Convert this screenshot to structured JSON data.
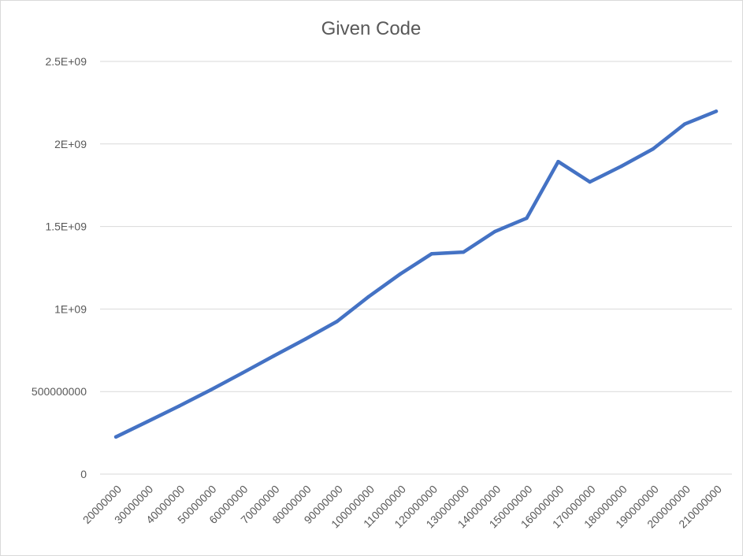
{
  "chart_data": {
    "type": "line",
    "title": "Given Code",
    "xlabel": "",
    "ylabel": "",
    "x": [
      20000000,
      30000000,
      40000000,
      50000000,
      60000000,
      70000000,
      80000000,
      90000000,
      100000000,
      110000000,
      120000000,
      130000000,
      140000000,
      150000000,
      160000000,
      170000000,
      180000000,
      190000000,
      200000000,
      210000000
    ],
    "x_tick_labels": [
      "20000000",
      "30000000",
      "40000000",
      "50000000",
      "60000000",
      "70000000",
      "80000000",
      "90000000",
      "100000000",
      "110000000",
      "120000000",
      "130000000",
      "140000000",
      "150000000",
      "160000000",
      "170000000",
      "180000000",
      "190000000",
      "200000000",
      "210000000"
    ],
    "series": [
      {
        "values": [
          225000000,
          318000000,
          412000000,
          510000000,
          612000000,
          716000000,
          818000000,
          925000000,
          1075000000,
          1212000000,
          1335000000,
          1345000000,
          1470000000,
          1550000000,
          1893000000,
          1770000000,
          1865000000,
          1970000000,
          2120000000,
          2198000000
        ]
      }
    ],
    "ylim": [
      0,
      2500000000
    ],
    "y_ticks": [
      0,
      500000000,
      1000000000,
      1500000000,
      2000000000,
      2500000000
    ],
    "y_tick_labels": [
      "0",
      "500000000",
      "1E+09",
      "1.5E+09",
      "2E+09",
      "2.5E+09"
    ],
    "grid": "horizontal",
    "legend": "none",
    "colors": {
      "line": "#4472c4",
      "grid": "#d9d9d9",
      "text": "#595959"
    }
  }
}
